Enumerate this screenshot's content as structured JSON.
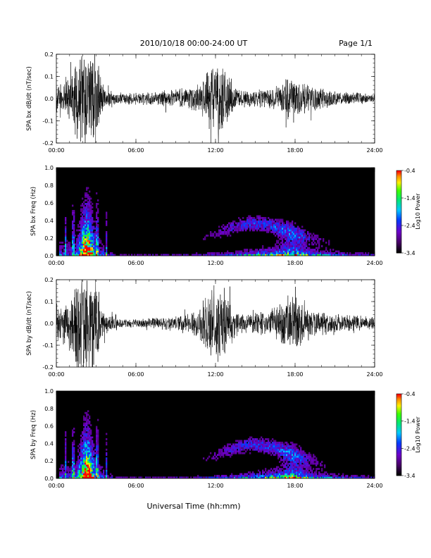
{
  "page": {
    "title": "2010/10/18   00:00-24:00 UT",
    "page_label": "Page 1/1",
    "xlabel": "Universal Time (hh:mm)"
  },
  "chart_data": [
    {
      "type": "line",
      "ylabel": "SPA bx dB/dt (nT/sec)",
      "ylim": [
        -0.2,
        0.2
      ],
      "yticks": [
        "-0.2",
        "-0.1",
        "0.0",
        "0.1",
        "0.2"
      ],
      "xlim": [
        "00:00",
        "24:00"
      ],
      "xticks": [
        "00:00",
        "06:00",
        "12:00",
        "18:00",
        "24:00"
      ],
      "envelope": {
        "hours": [
          0,
          0.5,
          1,
          1.5,
          2,
          2.5,
          3,
          3.3,
          3.6,
          4,
          5,
          6,
          7,
          8,
          9,
          10,
          10.5,
          11,
          11.5,
          12,
          12.5,
          13,
          13.5,
          14,
          15,
          16,
          16.5,
          17,
          17.5,
          18,
          18.5,
          19,
          20,
          21,
          22,
          23,
          24
        ],
        "amplitude": [
          0.08,
          0.1,
          0.12,
          0.25,
          0.25,
          0.25,
          0.25,
          0.12,
          0.06,
          0.04,
          0.03,
          0.03,
          0.03,
          0.04,
          0.05,
          0.05,
          0.07,
          0.09,
          0.15,
          0.18,
          0.16,
          0.12,
          0.06,
          0.04,
          0.04,
          0.05,
          0.06,
          0.08,
          0.12,
          0.1,
          0.08,
          0.07,
          0.05,
          0.04,
          0.03,
          0.03,
          0.02
        ]
      }
    },
    {
      "type": "heatmap",
      "ylabel": "SPA bx Freq (Hz)",
      "ylim": [
        0,
        1.0
      ],
      "yticks": [
        "0.0",
        "0.2",
        "0.4",
        "0.6",
        "0.8",
        "1.0"
      ],
      "xlim": [
        "00:00",
        "24:00"
      ],
      "xticks": [
        "00:00",
        "06:00",
        "12:00",
        "18:00",
        "24:00"
      ],
      "colorbar_label": "Log10 Power",
      "colorbar_ticks": [
        "-0.4",
        "-1.4",
        "-2.4",
        "-3.4"
      ],
      "color_range": [
        -3.4,
        -0.4
      ]
    },
    {
      "type": "line",
      "ylabel": "SPA by dB/dt (nT/sec)",
      "ylim": [
        -0.2,
        0.2
      ],
      "yticks": [
        "-0.2",
        "-0.1",
        "0.0",
        "0.1",
        "0.2"
      ],
      "xlim": [
        "00:00",
        "24:00"
      ],
      "xticks": [
        "00:00",
        "06:00",
        "12:00",
        "18:00",
        "24:00"
      ],
      "envelope": {
        "hours": [
          0,
          0.5,
          1,
          1.5,
          2,
          2.5,
          3,
          3.3,
          3.6,
          4,
          5,
          6,
          7,
          8,
          9,
          10,
          10.5,
          11,
          11.5,
          12,
          12.5,
          13,
          13.5,
          14,
          15,
          16,
          16.5,
          17,
          17.5,
          18,
          18.5,
          19,
          20,
          21,
          22,
          23,
          24
        ],
        "amplitude": [
          0.1,
          0.12,
          0.15,
          0.25,
          0.25,
          0.25,
          0.25,
          0.12,
          0.06,
          0.04,
          0.025,
          0.02,
          0.025,
          0.035,
          0.04,
          0.05,
          0.07,
          0.1,
          0.16,
          0.2,
          0.18,
          0.13,
          0.07,
          0.05,
          0.05,
          0.06,
          0.08,
          0.12,
          0.16,
          0.13,
          0.1,
          0.08,
          0.06,
          0.05,
          0.04,
          0.04,
          0.03
        ]
      }
    },
    {
      "type": "heatmap",
      "ylabel": "SPA by Freq (Hz)",
      "ylim": [
        0,
        1.0
      ],
      "yticks": [
        "0.0",
        "0.2",
        "0.4",
        "0.6",
        "0.8",
        "1.0"
      ],
      "xlim": [
        "00:00",
        "24:00"
      ],
      "xticks": [
        "00:00",
        "06:00",
        "12:00",
        "18:00",
        "24:00"
      ],
      "colorbar_label": "Log10 Power",
      "colorbar_ticks": [
        "-0.4",
        "-1.4",
        "-2.4",
        "-3.4"
      ],
      "color_range": [
        -3.4,
        -0.4
      ]
    }
  ]
}
